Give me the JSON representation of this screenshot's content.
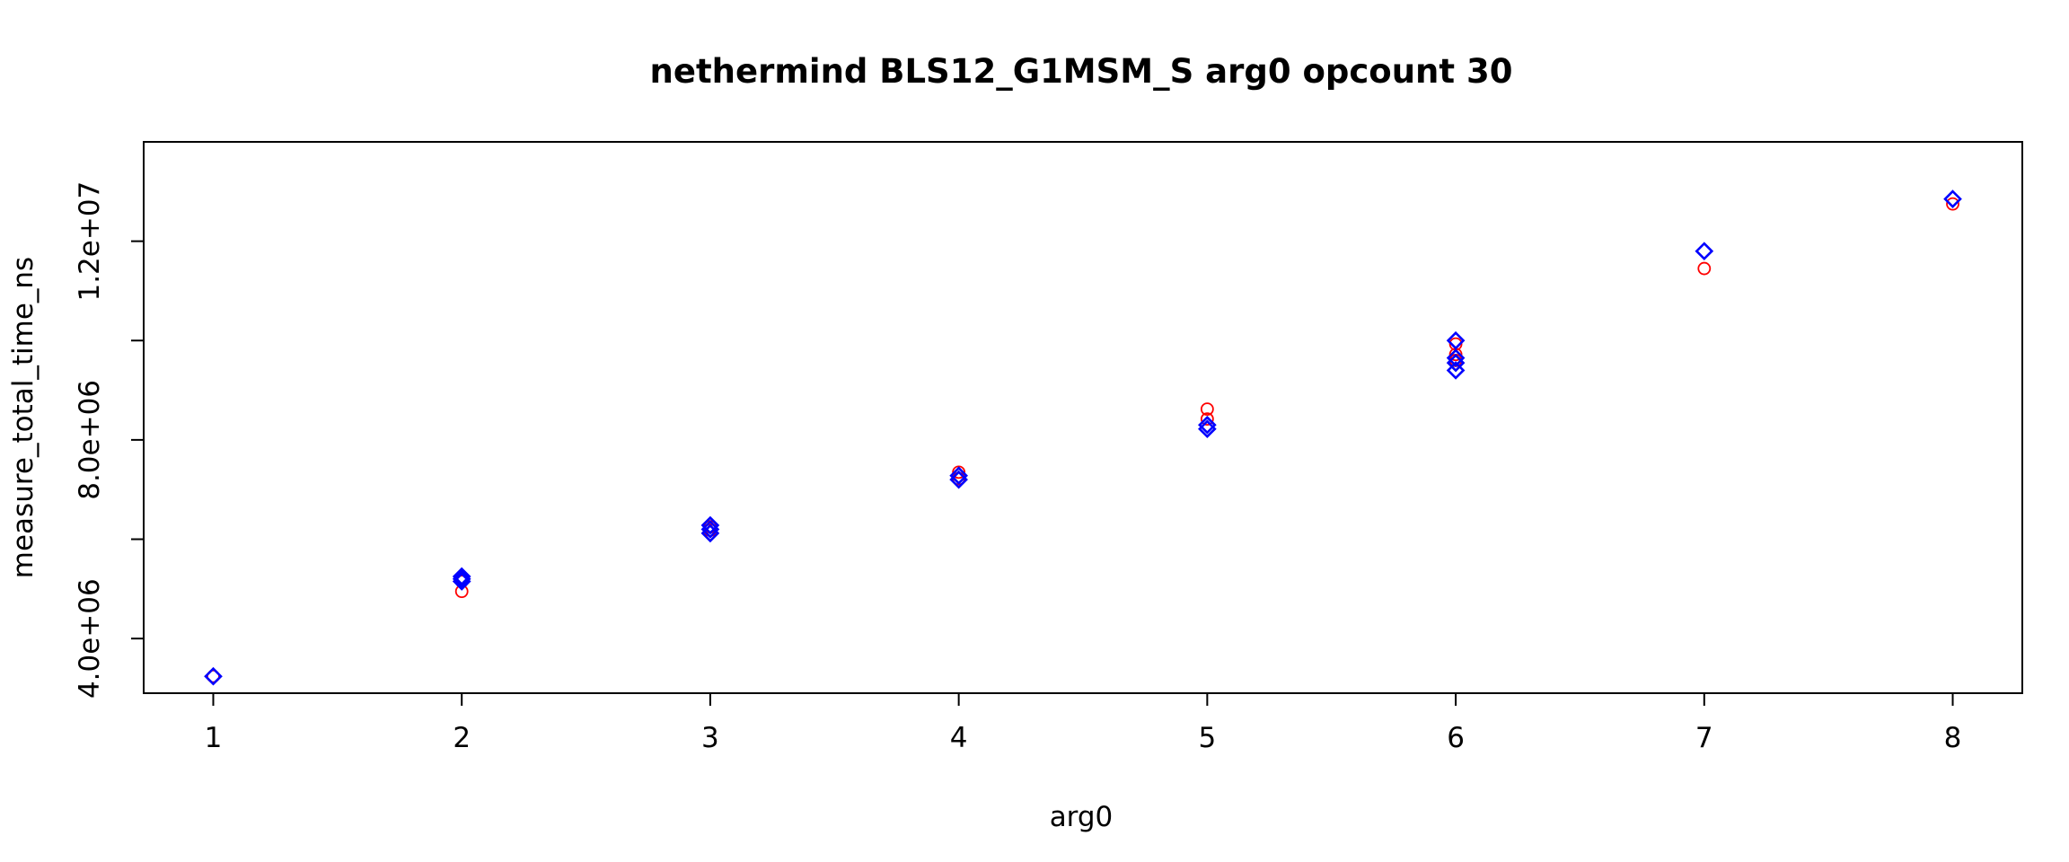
{
  "chart_data": {
    "type": "scatter",
    "title": "nethermind BLS12_G1MSM_S arg0 opcount 30",
    "xlabel": "arg0",
    "ylabel": "measure_total_time_ns",
    "xlim": [
      0.72,
      8.28
    ],
    "ylim": [
      2900000,
      14000000
    ],
    "x_ticks": [
      {
        "value": 1,
        "label": "1"
      },
      {
        "value": 2,
        "label": "2"
      },
      {
        "value": 3,
        "label": "3"
      },
      {
        "value": 4,
        "label": "4"
      },
      {
        "value": 5,
        "label": "5"
      },
      {
        "value": 6,
        "label": "6"
      },
      {
        "value": 7,
        "label": "7"
      },
      {
        "value": 8,
        "label": "8"
      }
    ],
    "y_ticks": [
      {
        "value": 4000000,
        "label": "4.0e+06"
      },
      {
        "value": 6000000,
        "label": ""
      },
      {
        "value": 8000000,
        "label": "8.0e+06"
      },
      {
        "value": 10000000,
        "label": ""
      },
      {
        "value": 12000000,
        "label": "1.2e+07"
      }
    ],
    "grid": false,
    "series": [
      {
        "marker": "circle",
        "color": "#ff0000",
        "points": [
          {
            "x": 1,
            "y": 3240000
          },
          {
            "x": 2,
            "y": 4950000
          },
          {
            "x": 2,
            "y": 5150000
          },
          {
            "x": 3,
            "y": 6180000
          },
          {
            "x": 3,
            "y": 6250000
          },
          {
            "x": 4,
            "y": 7350000
          },
          {
            "x": 4,
            "y": 7220000
          },
          {
            "x": 5,
            "y": 8620000
          },
          {
            "x": 5,
            "y": 8420000
          },
          {
            "x": 6,
            "y": 9930000
          },
          {
            "x": 6,
            "y": 9720000
          },
          {
            "x": 6,
            "y": 9600000
          },
          {
            "x": 7,
            "y": 11450000
          },
          {
            "x": 8,
            "y": 12750000
          }
        ]
      },
      {
        "marker": "diamond",
        "color": "#0000ff",
        "points": [
          {
            "x": 1,
            "y": 3240000
          },
          {
            "x": 2,
            "y": 5200000
          },
          {
            "x": 2,
            "y": 5150000
          },
          {
            "x": 2,
            "y": 5250000
          },
          {
            "x": 3,
            "y": 6200000
          },
          {
            "x": 3,
            "y": 6280000
          },
          {
            "x": 3,
            "y": 6120000
          },
          {
            "x": 4,
            "y": 7280000
          },
          {
            "x": 4,
            "y": 7200000
          },
          {
            "x": 5,
            "y": 8300000
          },
          {
            "x": 5,
            "y": 8220000
          },
          {
            "x": 6,
            "y": 10000000
          },
          {
            "x": 6,
            "y": 9650000
          },
          {
            "x": 6,
            "y": 9550000
          },
          {
            "x": 6,
            "y": 9400000
          },
          {
            "x": 7,
            "y": 11800000
          },
          {
            "x": 8,
            "y": 12850000
          }
        ]
      }
    ]
  }
}
